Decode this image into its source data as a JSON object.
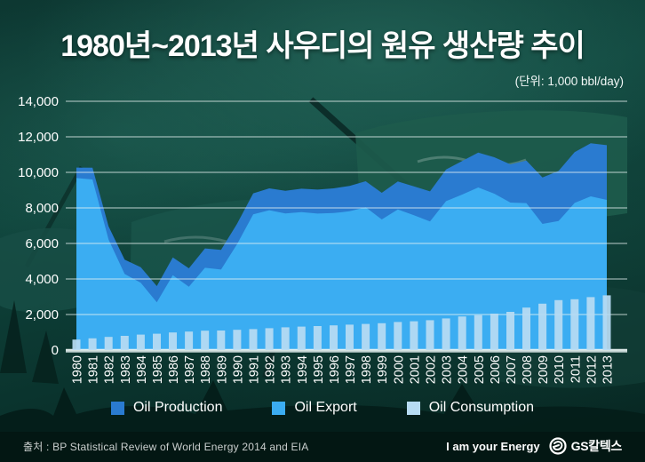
{
  "header": {
    "title": "1980년~2013년 사우디의 원유 생산량 추이",
    "unit_label": "(단위: 1,000 bbl/day)"
  },
  "chart_data": {
    "type": "area+bar",
    "x": [
      1980,
      1981,
      1982,
      1983,
      1984,
      1985,
      1986,
      1987,
      1988,
      1989,
      1990,
      1991,
      1992,
      1993,
      1994,
      1995,
      1996,
      1997,
      1998,
      1999,
      2000,
      2001,
      2002,
      2003,
      2004,
      2005,
      2006,
      2007,
      2008,
      2009,
      2010,
      2011,
      2012,
      2013
    ],
    "series": [
      {
        "name": "Oil Production",
        "type": "area",
        "color": "#2a7bd0",
        "values": [
          10270,
          10260,
          6960,
          5090,
          4660,
          3600,
          5210,
          4600,
          5720,
          5640,
          7110,
          8820,
          9100,
          8960,
          9080,
          9030,
          9100,
          9240,
          9500,
          8850,
          9490,
          9210,
          8930,
          10160,
          10640,
          11110,
          10850,
          10450,
          10660,
          9710,
          10080,
          11140,
          11640,
          11530
        ]
      },
      {
        "name": "Oil Export",
        "type": "area",
        "color": "#3badf2",
        "values": [
          9680,
          9600,
          6220,
          4280,
          3790,
          2690,
          4210,
          3560,
          4630,
          4530,
          5960,
          7640,
          7870,
          7690,
          7760,
          7680,
          7710,
          7810,
          8040,
          7350,
          7910,
          7590,
          7240,
          8380,
          8750,
          9150,
          8800,
          8300,
          8270,
          7100,
          7260,
          8280,
          8650,
          8450
        ]
      },
      {
        "name": "Oil Consumption",
        "type": "bar",
        "color": "#b7dcf3",
        "values": [
          590,
          660,
          740,
          800,
          870,
          920,
          990,
          1040,
          1090,
          1100,
          1140,
          1180,
          1230,
          1280,
          1320,
          1350,
          1390,
          1430,
          1470,
          1510,
          1580,
          1620,
          1680,
          1780,
          1890,
          1960,
          2050,
          2150,
          2390,
          2610,
          2810,
          2860,
          2980,
          3080
        ]
      }
    ],
    "title": "1980년~2013년 사우디의 원유 생산량 추이",
    "xlabel": "",
    "ylabel": "1,000 bbl/day",
    "ylim": [
      0,
      14000
    ],
    "ytick_step": 2000,
    "grid": true,
    "gridline_color": "#e9f3f2",
    "legend_position": "bottom"
  },
  "footer": {
    "source": "출처 : BP Statistical Review of World Energy 2014 and EIA",
    "slogan": "I am your Energy",
    "brand": "GS칼텍스"
  }
}
